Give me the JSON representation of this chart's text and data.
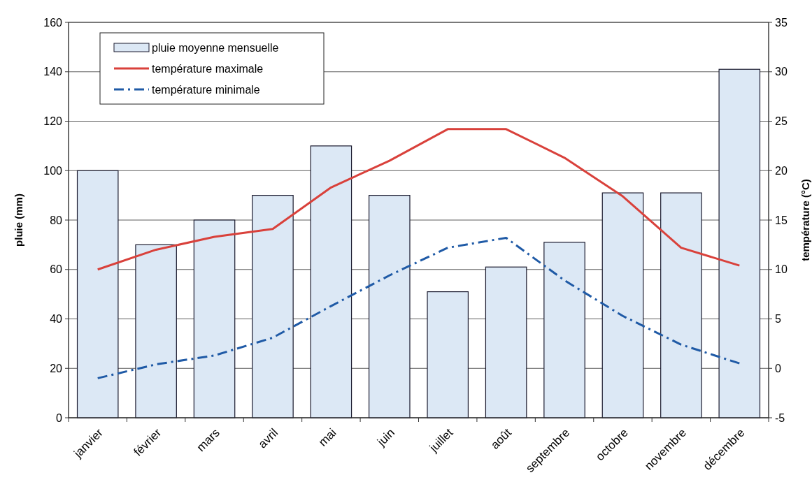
{
  "chart_data": {
    "type": "bar",
    "ylabel": "pluie (mm)",
    "y2label": "température (°C)",
    "categories": [
      "janvier",
      "février",
      "mars",
      "avril",
      "mai",
      "juin",
      "juillet",
      "août",
      "septembre",
      "octobre",
      "novembre",
      "décembre"
    ],
    "series": [
      {
        "name": "pluie moyenne mensuelle",
        "color": "#dce8f5",
        "values": [
          100,
          70,
          80,
          90,
          110,
          90,
          51,
          61,
          71,
          91,
          91,
          141
        ]
      },
      {
        "name": "température maximale",
        "type": "line",
        "axis": "y2",
        "color": "#d9413b",
        "line_style": "solid",
        "values": [
          10,
          12,
          13.3,
          14.1,
          18.3,
          21,
          24.2,
          24.2,
          21.3,
          17.4,
          12.2,
          10.4
        ]
      },
      {
        "name": "température minimale",
        "type": "line",
        "axis": "y2",
        "color": "#1f5aa6",
        "line_style": "dashed",
        "values": [
          -1,
          0.4,
          1.3,
          3.1,
          6.3,
          9.4,
          12.2,
          13.2,
          8.9,
          5.3,
          2.4,
          0.5
        ]
      }
    ],
    "ylim": [
      0,
      160
    ],
    "yticks": [
      0,
      20,
      40,
      60,
      80,
      100,
      120,
      140,
      160
    ],
    "y2lim": [
      -5,
      35
    ],
    "y2ticks": [
      -5,
      0,
      5,
      10,
      15,
      20,
      25,
      30,
      35
    ],
    "grid": "y",
    "legend": "top left"
  }
}
